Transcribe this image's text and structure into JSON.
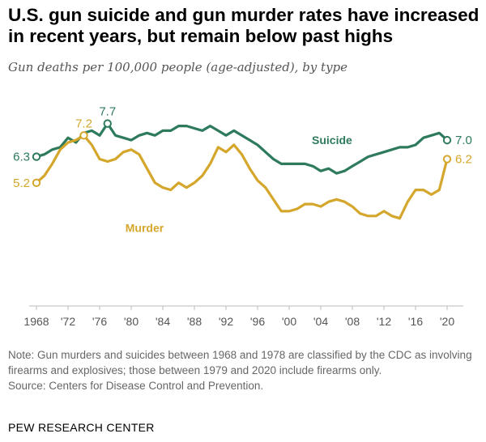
{
  "header": {
    "title": "U.S. gun suicide and gun murder rates have increased in recent years, but remain below past highs",
    "subtitle": "Gun deaths per 100,000 people (age-adjusted), by type"
  },
  "footer": {
    "note": "Note: Gun murders and suicides between 1968 and 1978 are classified by the CDC as involving firearms and explosives; those between 1979 and 2020 include firearms only.",
    "source": "Source: Centers for Disease Control and Prevention.",
    "brand": "PEW RESEARCH CENTER"
  },
  "chart_data": {
    "type": "line",
    "x": [
      1968,
      1969,
      1970,
      1971,
      1972,
      1973,
      1974,
      1975,
      1976,
      1977,
      1978,
      1979,
      1980,
      1981,
      1982,
      1983,
      1984,
      1985,
      1986,
      1987,
      1988,
      1989,
      1990,
      1991,
      1992,
      1993,
      1994,
      1995,
      1996,
      1997,
      1998,
      1999,
      2000,
      2001,
      2002,
      2003,
      2004,
      2005,
      2006,
      2007,
      2008,
      2009,
      2010,
      2011,
      2012,
      2013,
      2014,
      2015,
      2016,
      2017,
      2018,
      2019,
      2020
    ],
    "series": [
      {
        "name": "Suicide",
        "color": "#2e7a5c",
        "values": [
          6.3,
          6.4,
          6.6,
          6.7,
          7.1,
          6.9,
          7.3,
          7.4,
          7.2,
          7.7,
          7.2,
          7.1,
          7.0,
          7.2,
          7.3,
          7.2,
          7.4,
          7.4,
          7.6,
          7.6,
          7.5,
          7.4,
          7.6,
          7.4,
          7.2,
          7.4,
          7.2,
          7.0,
          6.8,
          6.5,
          6.2,
          6.0,
          6.0,
          6.0,
          6.0,
          5.9,
          5.7,
          5.8,
          5.6,
          5.7,
          5.9,
          6.1,
          6.3,
          6.4,
          6.5,
          6.6,
          6.7,
          6.7,
          6.8,
          7.1,
          7.2,
          7.3,
          7.0
        ],
        "label_values": [
          {
            "year": 1968,
            "text": "6.3",
            "marker": true
          },
          {
            "year": 1977,
            "text": "7.7",
            "marker": true
          },
          {
            "year": 2020,
            "text": "7.0",
            "marker": true
          }
        ]
      },
      {
        "name": "Murder",
        "color": "#d4a72c",
        "values": [
          5.2,
          5.5,
          6.0,
          6.6,
          6.9,
          7.0,
          7.2,
          6.8,
          6.2,
          6.1,
          6.2,
          6.5,
          6.6,
          6.4,
          5.8,
          5.2,
          5.0,
          4.9,
          5.2,
          5.0,
          5.2,
          5.5,
          6.0,
          6.7,
          6.5,
          6.8,
          6.4,
          5.8,
          5.3,
          5.0,
          4.5,
          4.0,
          4.0,
          4.1,
          4.3,
          4.3,
          4.2,
          4.4,
          4.5,
          4.4,
          4.2,
          3.9,
          3.8,
          3.8,
          4.0,
          3.8,
          3.7,
          4.4,
          4.9,
          4.9,
          4.7,
          4.9,
          6.2
        ],
        "label_values": [
          {
            "year": 1968,
            "text": "5.2",
            "marker": true
          },
          {
            "year": 1974,
            "text": "7.2",
            "marker": true
          },
          {
            "year": 2020,
            "text": "6.2",
            "marker": true
          }
        ]
      }
    ],
    "tick_labels": [
      "1968",
      "'72",
      "'76",
      "'80",
      "'84",
      "'88",
      "'92",
      "'96",
      "'00",
      "'04",
      "'08",
      "'12",
      "'16",
      "'20"
    ],
    "tick_years": [
      1968,
      1972,
      1976,
      1980,
      1984,
      1988,
      1992,
      1996,
      2000,
      2004,
      2008,
      2012,
      2016,
      2020
    ],
    "ylim": [
      0,
      8.2
    ],
    "grid": false,
    "legend": "inline labels"
  }
}
